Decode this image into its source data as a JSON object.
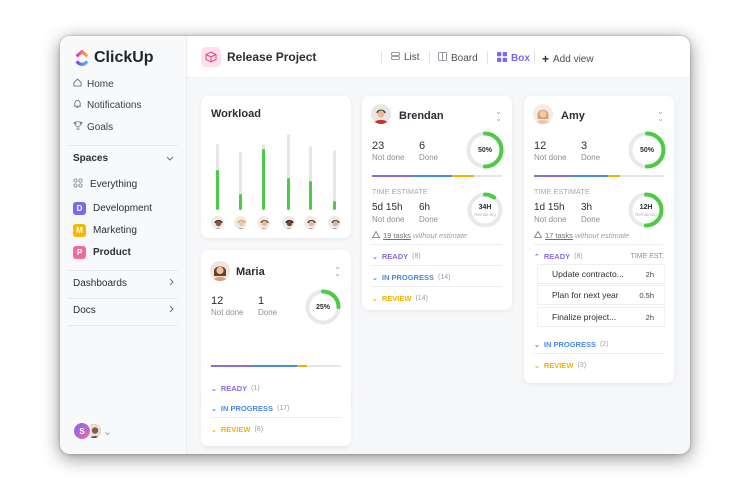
{
  "app": {
    "name": "ClickUp"
  },
  "sidebar": {
    "nav": [
      {
        "label": "Home",
        "icon": "home-icon"
      },
      {
        "label": "Notifications",
        "icon": "bell-icon"
      },
      {
        "label": "Goals",
        "icon": "trophy-icon"
      }
    ],
    "spaces_label": "Spaces",
    "everything_label": "Everything",
    "spaces": [
      {
        "letter": "D",
        "label": "Development",
        "color": "#7b68ee"
      },
      {
        "letter": "M",
        "label": "Marketing",
        "color": "#f5b800"
      },
      {
        "letter": "P",
        "label": "Product",
        "color": "#f06ba3"
      }
    ],
    "dashboards_label": "Dashboards",
    "docs_label": "Docs",
    "user_initial": "S"
  },
  "topbar": {
    "project_title": "Release Project",
    "views": [
      {
        "label": "List",
        "icon": "list-icon"
      },
      {
        "label": "Board",
        "icon": "board-icon"
      },
      {
        "label": "Box",
        "icon": "box-icon",
        "active": true
      }
    ],
    "add_view_label": "Add view"
  },
  "workload": {
    "title": "Workload",
    "levels": [
      0.6,
      0.28,
      0.92,
      0.42,
      0.45,
      0.15
    ]
  },
  "people": {
    "maria": {
      "name": "Maria",
      "not_done": "12",
      "not_done_label": "Not done",
      "done": "1",
      "done_label": "Done",
      "progress_label": "25%",
      "progress": 0.25,
      "groups": [
        {
          "label": "READY",
          "count": "(1)",
          "color": "#8d6be0"
        },
        {
          "label": "IN PROGRESS",
          "count": "(17)",
          "color": "#4a89e8"
        },
        {
          "label": "REVIEW",
          "count": "(8)",
          "color": "#f0b400"
        }
      ]
    },
    "brendan": {
      "name": "Brendan",
      "not_done": "23",
      "not_done_label": "Not done",
      "done": "6",
      "done_label": "Done",
      "progress_label": "50%",
      "progress": 0.5,
      "time_estimate_label": "TIME ESTIMATE",
      "te_not_done": "5d 15h",
      "te_not_done_label": "Not done",
      "te_done": "6h",
      "te_done_label": "Done",
      "te_ring_label": "34H",
      "te_ring_sub": "Remaining",
      "te_progress": 0.1,
      "warn_link": "19 tasks",
      "warn_text": "without estimate",
      "groups": [
        {
          "label": "READY",
          "count": "(8)",
          "color": "#8d6be0"
        },
        {
          "label": "IN PROGRESS",
          "count": "(14)",
          "color": "#4a89e8"
        },
        {
          "label": "REVIEW",
          "count": "(14)",
          "color": "#f0b400"
        }
      ]
    },
    "amy": {
      "name": "Amy",
      "not_done": "12",
      "not_done_label": "Not done",
      "done": "3",
      "done_label": "Done",
      "progress_label": "50%",
      "progress": 0.5,
      "time_estimate_label": "TIME ESTIMATE",
      "te_not_done": "1d 15h",
      "te_not_done_label": "Not done",
      "te_done": "3h",
      "te_done_label": "Done",
      "te_ring_label": "12H",
      "te_ring_sub": "Remaining",
      "te_progress": 0.5,
      "warn_link": "17 tasks",
      "warn_text": "without estimate",
      "ready_group": {
        "label": "READY",
        "count": "(8)",
        "color": "#8d6be0",
        "time_est_label": "TIME EST."
      },
      "tasks": [
        {
          "name": "Update contracto...",
          "time": "2h"
        },
        {
          "name": "Plan for next year",
          "time": "0.5h"
        },
        {
          "name": "Finalize project...",
          "time": "2h"
        }
      ],
      "groups": [
        {
          "label": "IN PROGRESS",
          "count": "(2)",
          "color": "#4a89e8"
        },
        {
          "label": "REVIEW",
          "count": "(3)",
          "color": "#f0b400"
        }
      ]
    }
  },
  "colors": {
    "accent": "#7b68ee",
    "progress_green": "#4dcb46",
    "purple": "#8d6be0",
    "blue": "#4a89e8",
    "yellow": "#f0b400"
  }
}
